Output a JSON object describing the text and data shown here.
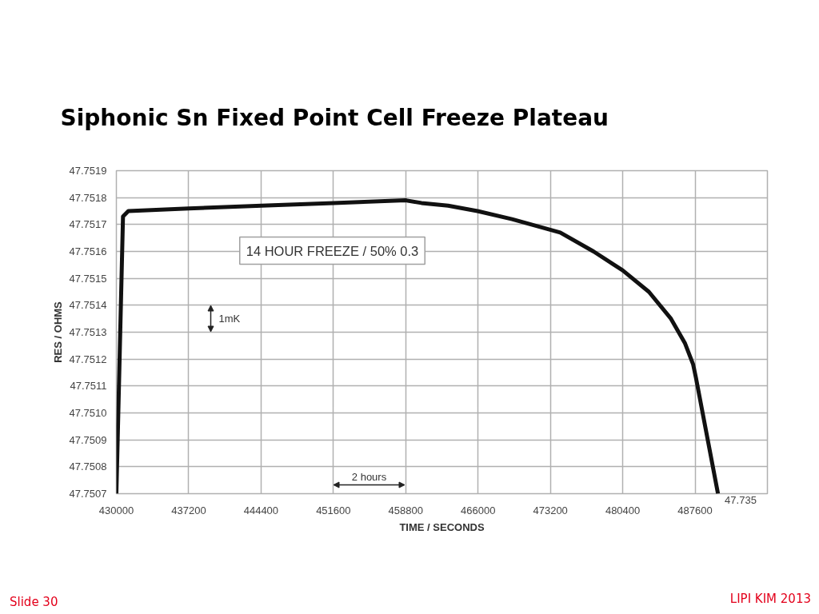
{
  "chart_data": {
    "type": "line",
    "title": "Siphonic Sn Fixed Point Cell Freeze Plateau",
    "xlabel": "TIME / SECONDS",
    "ylabel": "RES / OHMS",
    "x": [
      430000,
      430660,
      431190,
      437200,
      444460,
      451620,
      458780,
      460370,
      463020,
      465940,
      469380,
      474180,
      477490,
      480390,
      483000,
      485200,
      486580,
      487410,
      487690,
      489880
    ],
    "series": [
      {
        "color": "#111111",
        "values": [
          47.7507,
          47.75173,
          47.75175,
          47.75176,
          47.75177,
          47.75178,
          47.75179,
          47.75178,
          47.75177,
          47.75175,
          47.75172,
          47.75167,
          47.7516,
          47.75153,
          47.75145,
          47.75135,
          47.75126,
          47.75118,
          47.75113,
          47.7507
        ]
      }
    ],
    "xlim": [
      430000,
      494800
    ],
    "xticks": [
      430000,
      437200,
      444400,
      451600,
      458800,
      466000,
      473200,
      480400,
      487600
    ],
    "ylim": [
      47.7507,
      47.7519
    ],
    "yticks": [
      47.7507,
      47.7508,
      47.7509,
      {
        "value": 47.751,
        "label": "47.7510"
      },
      47.7511,
      47.7512,
      47.7513,
      47.7514,
      47.7515,
      47.7516,
      47.7517,
      47.7518,
      47.7519
    ],
    "grid": true,
    "annotations": [
      "14 HOUR FREEZE / 50% 0.3",
      "1mK",
      "2 hours",
      "47.735",
      "Slide 30",
      "LIPI KIM 2013"
    ]
  }
}
